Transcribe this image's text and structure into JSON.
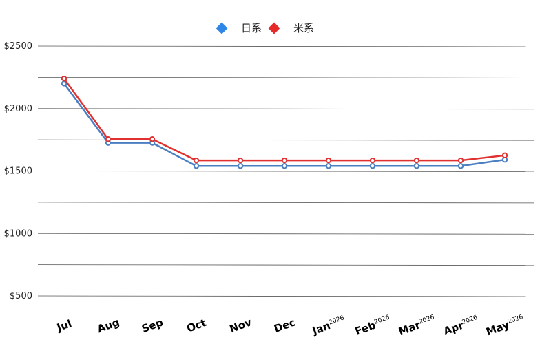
{
  "chart_data": {
    "type": "line",
    "categories": [
      "Jul",
      "Aug",
      "Sep",
      "Oct",
      "Nov",
      "Dec",
      "Jan",
      "Feb",
      "Mar",
      "Apr",
      "May"
    ],
    "category_superscripts": [
      "",
      "",
      "",
      "",
      "",
      "",
      "2026",
      "2026",
      "2026",
      "2026",
      "2026"
    ],
    "series": [
      {
        "name": "日系",
        "color": "#4a7fc1",
        "legend_color": "#2f86e6",
        "values": [
          2200,
          1725,
          1725,
          1540,
          1540,
          1540,
          1540,
          1540,
          1540,
          1540,
          1590
        ]
      },
      {
        "name": "米系",
        "color": "#e03030",
        "legend_color": "#e62a2a",
        "values": [
          2240,
          1755,
          1755,
          1585,
          1585,
          1585,
          1585,
          1585,
          1585,
          1585,
          1625
        ]
      }
    ],
    "y_ticks": [
      {
        "value": 2500,
        "label": "$2500"
      },
      {
        "value": 2000,
        "label": "$2000"
      },
      {
        "value": 1500,
        "label": "$1500"
      },
      {
        "value": 1000,
        "label": "$1000"
      },
      {
        "value": 500,
        "label": "$500"
      }
    ],
    "ylim": [
      500,
      2500
    ],
    "grid": true,
    "legend_position": "top-center"
  }
}
